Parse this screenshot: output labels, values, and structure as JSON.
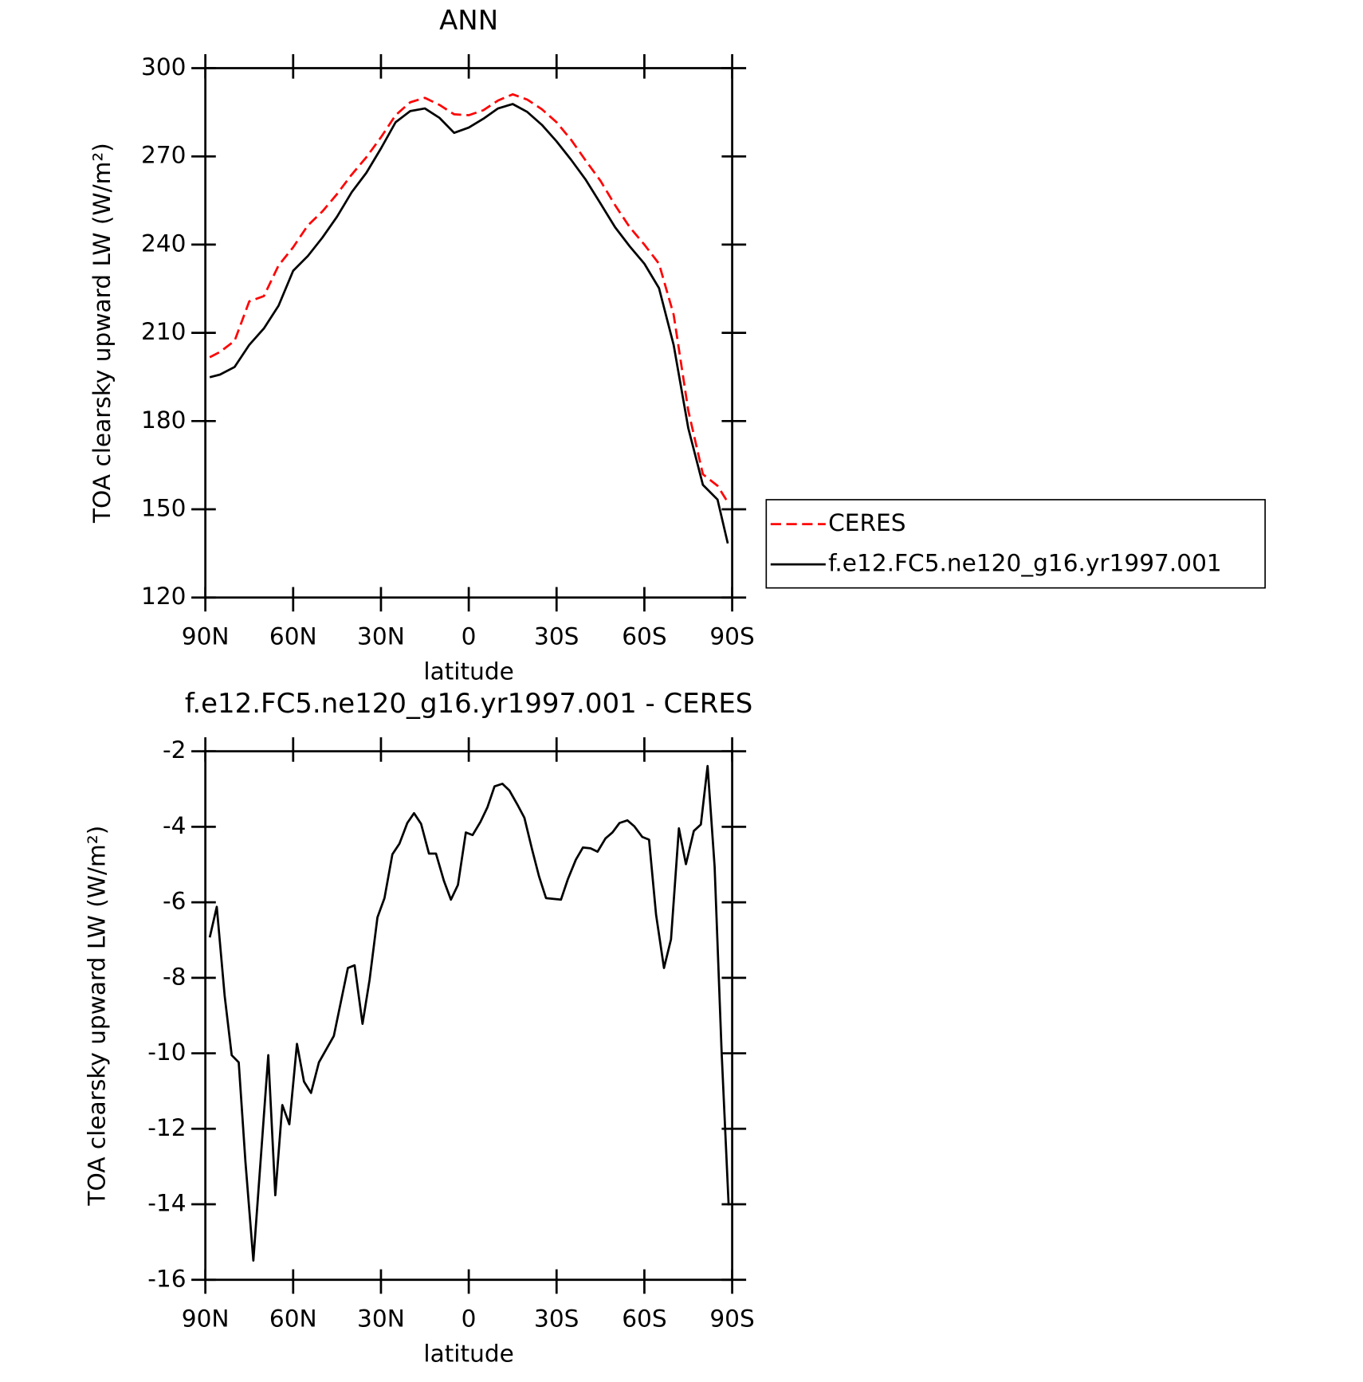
{
  "chart_data": [
    {
      "type": "line",
      "title": "ANN",
      "ylabel": "TOA clearsky upward LW (W/m²)",
      "xlabel": "latitude",
      "x": [
        88.5,
        85,
        80,
        75,
        70,
        65,
        60,
        55,
        50,
        45,
        40,
        35,
        30,
        25,
        20,
        15,
        10,
        5,
        0,
        -5,
        -10,
        -15,
        -20,
        -25,
        -30,
        -35,
        -40,
        -45,
        -50,
        -55,
        -60,
        -65,
        -70,
        -75,
        -80,
        -85,
        -88.5
      ],
      "series": [
        {
          "name": "CERES",
          "color": "#ff0000",
          "dash": true,
          "values": [
            201.7,
            203.5,
            207.3,
            220.7,
            222.5,
            232.9,
            239.1,
            246.5,
            251.3,
            257.2,
            263.8,
            269.7,
            276.5,
            284,
            288.4,
            289.9,
            287.5,
            284.3,
            284,
            285.7,
            289,
            291.1,
            289.3,
            286,
            281.6,
            275.6,
            268.5,
            261.7,
            253.4,
            245.9,
            240,
            233.5,
            216.2,
            183.6,
            161.9,
            158,
            152.4
          ]
        },
        {
          "name": "f.e12.FC5.ne120_g16.yr1997.001",
          "color": "#000000",
          "dash": false,
          "values": [
            194.9,
            195.8,
            198.4,
            205.9,
            211.5,
            219.2,
            231.1,
            236.1,
            242.4,
            249.5,
            257.8,
            264.4,
            272.7,
            281.6,
            285.4,
            286.3,
            283.1,
            278,
            279.8,
            282.8,
            286.3,
            287.8,
            285.1,
            280.7,
            275.1,
            268.8,
            262,
            254,
            245.9,
            239.4,
            233.5,
            225.2,
            205.9,
            177.6,
            158.3,
            153.3,
            138.4
          ]
        }
      ],
      "xlim": [
        90,
        -90
      ],
      "xticks": [
        {
          "value": 90,
          "label": "90N"
        },
        {
          "value": 60,
          "label": "60N"
        },
        {
          "value": 30,
          "label": "30N"
        },
        0,
        {
          "value": -30,
          "label": "30S"
        },
        {
          "value": -60,
          "label": "60S"
        },
        {
          "value": -90,
          "label": "90S"
        }
      ],
      "ylim": [
        120,
        300
      ],
      "yticks": [
        120,
        150,
        180,
        210,
        240,
        270,
        300
      ],
      "legend": "outside-right"
    },
    {
      "type": "line",
      "title": "f.e12.FC5.ne120_g16.yr1997.001 - CERES",
      "ylabel": "TOA clearsky upward LW (W/m²)",
      "xlabel": "latitude",
      "x": [
        88.5,
        86.1,
        83.4,
        81.0,
        78.6,
        76.3,
        73.6,
        68.5,
        66.1,
        63.7,
        61.3,
        58.7,
        56.3,
        53.9,
        51.2,
        46.1,
        41.3,
        39.0,
        36.3,
        33.9,
        31.2,
        28.8,
        26.1,
        23.7,
        21.0,
        18.7,
        16.3,
        13.6,
        11.2,
        8.5,
        6.1,
        3.7,
        1.0,
        -1.3,
        -4.0,
        -6.4,
        -8.8,
        -11.5,
        -13.9,
        -16.6,
        -19.0,
        -21.6,
        -24.0,
        -26.4,
        -29.1,
        -31.5,
        -33.9,
        -36.6,
        -39.0,
        -41.6,
        -44.0,
        -46.7,
        -49.1,
        -51.5,
        -54.2,
        -56.6,
        -59.3,
        -61.6,
        -64.0,
        -66.7,
        -69.1,
        -71.8,
        -74.2,
        -76.9,
        -79.3,
        -81.6,
        -84.0,
        -86.4,
        -88.8
      ],
      "series": [
        {
          "color": "#000000",
          "dash": false,
          "values": [
            -6.93,
            -6.12,
            -8.48,
            -10.05,
            -10.24,
            -12.88,
            -15.49,
            -10.05,
            -13.76,
            -11.37,
            -11.88,
            -9.75,
            -10.75,
            -11.05,
            -10.24,
            -9.54,
            -7.74,
            -7.67,
            -9.22,
            -8.06,
            -6.4,
            -5.89,
            -4.73,
            -4.45,
            -3.9,
            -3.64,
            -3.92,
            -4.71,
            -4.71,
            -5.43,
            -5.93,
            -5.54,
            -4.15,
            -4.22,
            -3.87,
            -3.48,
            -2.93,
            -2.86,
            -3.04,
            -3.41,
            -3.76,
            -4.59,
            -5.31,
            -5.89,
            -5.91,
            -5.93,
            -5.38,
            -4.87,
            -4.55,
            -4.57,
            -4.66,
            -4.31,
            -4.15,
            -3.9,
            -3.83,
            -3.99,
            -4.27,
            -4.34,
            -6.33,
            -7.74,
            -6.98,
            -4.04,
            -4.99,
            -4.11,
            -3.94,
            -2.39,
            -5.05,
            -9.98,
            -14.03
          ]
        }
      ],
      "xlim": [
        90,
        -90
      ],
      "xticks": [
        {
          "value": 90,
          "label": "90N"
        },
        {
          "value": 60,
          "label": "60N"
        },
        {
          "value": 30,
          "label": "30N"
        },
        0,
        {
          "value": -30,
          "label": "30S"
        },
        {
          "value": -60,
          "label": "60S"
        },
        {
          "value": -90,
          "label": "90S"
        }
      ],
      "ylim": [
        -16,
        -2
      ],
      "yticks": [
        -16,
        -14,
        -12,
        -10,
        -8,
        -6,
        -4,
        -2
      ]
    }
  ]
}
